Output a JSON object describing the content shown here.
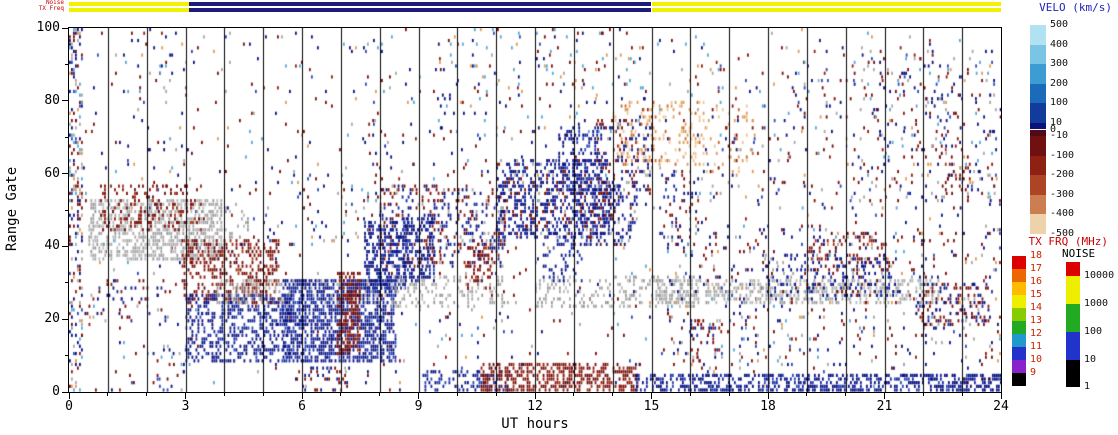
{
  "header": {
    "noise_label": "Noise",
    "txfreq_label": "TX Freq",
    "label_color": "#cc0000",
    "strips": [
      {
        "name": "noise",
        "segments": [
          {
            "from": 0,
            "to": 3.1,
            "color": "#f2f200"
          },
          {
            "from": 3.1,
            "to": 15.0,
            "color": "#1c1c7a"
          },
          {
            "from": 15.0,
            "to": 24,
            "color": "#f2f200"
          }
        ]
      },
      {
        "name": "txfreq",
        "segments": [
          {
            "from": 0,
            "to": 3.1,
            "color": "#f2f200"
          },
          {
            "from": 3.1,
            "to": 15.0,
            "color": "#1c1c7a"
          },
          {
            "from": 15.0,
            "to": 24,
            "color": "#f2f200"
          }
        ]
      }
    ]
  },
  "chart_data": {
    "type": "heatmap",
    "title": "",
    "xlabel": "UT hours",
    "ylabel": "Range Gate",
    "xlim": [
      0,
      24
    ],
    "ylim": [
      0,
      100
    ],
    "xticks": [
      0,
      3,
      6,
      9,
      12,
      15,
      18,
      21,
      24
    ],
    "yticks": [
      0,
      20,
      40,
      60,
      80,
      100
    ],
    "x_minor_step": 1,
    "y_minor_step": 10,
    "grid": "vertical-hour-lines",
    "legend_position": "right",
    "hour_gridlines": [
      1,
      2,
      3,
      4,
      5,
      6,
      7,
      8,
      9,
      10,
      11,
      12,
      13,
      14,
      15,
      16,
      17,
      18,
      19,
      20,
      21,
      22,
      23
    ],
    "colorbars": {
      "velocity": {
        "title": "VELO (km/s)",
        "title_color": "#2222bb",
        "label_color": "#111111",
        "label_mode": "edges",
        "labels": [
          "500",
          "400",
          "300",
          "200",
          "100",
          "10",
          "0",
          "-10",
          "-100",
          "-200",
          "-300",
          "-400",
          "-500"
        ],
        "blocks": [
          [
            "#b2e2f2",
            1
          ],
          [
            "#7ac4e6",
            1
          ],
          [
            "#3d9cd4",
            1
          ],
          [
            "#1a6cba",
            1
          ],
          [
            "#123c9c",
            1
          ],
          [
            "#0a1478",
            0.35
          ],
          [
            "#520a14",
            0.35
          ],
          [
            "#701010",
            1
          ],
          [
            "#8e2014",
            1
          ],
          [
            "#ad4426",
            1
          ],
          [
            "#cb7e50",
            1
          ],
          [
            "#eed2aa",
            1
          ]
        ]
      },
      "txfrq": {
        "title": "TX FRQ (MHz)",
        "title_color": "#cc0000",
        "label_color": "#cc2200",
        "label_mode": "tops",
        "labels": [
          "18",
          "17",
          "16",
          "15",
          "14",
          "13",
          "12",
          "11",
          "10",
          "9"
        ],
        "blocks": [
          [
            "#dd0000",
            1
          ],
          [
            "#ee6600",
            1
          ],
          [
            "#ffbb00",
            1
          ],
          [
            "#eeee00",
            1
          ],
          [
            "#88cc00",
            1
          ],
          [
            "#22aa22",
            1
          ],
          [
            "#2299cc",
            1
          ],
          [
            "#2233cc",
            1
          ],
          [
            "#8822cc",
            1
          ],
          [
            "#000000",
            1
          ]
        ]
      },
      "noise": {
        "title": "NOISE",
        "title_color": "#000000",
        "label_color": "#111111",
        "label_mode": "bottoms",
        "labels": [
          "10000",
          "1000",
          "100",
          "10",
          "1"
        ],
        "blocks": [
          [
            "#dd0000",
            14
          ],
          [
            "#eeee00",
            28
          ],
          [
            "#22aa22",
            28
          ],
          [
            "#2233cc",
            28
          ],
          [
            "#000000",
            27
          ]
        ]
      }
    },
    "scatter": {
      "seed": 20240,
      "palettes": {
        "gs": {
          "colors": [
            "#a9a9a9",
            "#bdbdbd",
            "#999999"
          ],
          "weights": [
            0.5,
            0.3,
            0.2
          ]
        },
        "neg": {
          "colors": [
            "#7a0f0a",
            "#8f1d10",
            "#5c0a14",
            "#a03a20"
          ],
          "weights": [
            0.4,
            0.3,
            0.2,
            0.1
          ]
        },
        "pos": {
          "colors": [
            "#0c1480",
            "#1b2aa0",
            "#2f4cb8"
          ],
          "weights": [
            0.55,
            0.3,
            0.15
          ]
        },
        "lb": {
          "colors": [
            "#58a8d8",
            "#8fc9e9",
            "#2f7fc1"
          ],
          "weights": [
            0.4,
            0.4,
            0.2
          ]
        },
        "warm": {
          "colors": [
            "#e19b5a",
            "#efc79b",
            "#c56a2e"
          ],
          "weights": [
            0.4,
            0.4,
            0.2
          ]
        },
        "mix": {
          "colors": [
            "#0c1480",
            "#7a0f0a",
            "#a9a9a9",
            "#58a8d8",
            "#e19b5a",
            "#2f4cb8",
            "#8f1d10"
          ],
          "weights": [
            0.28,
            0.24,
            0.14,
            0.12,
            0.08,
            0.07,
            0.07
          ]
        },
        "mixrb": {
          "colors": [
            "#0c1480",
            "#7a0f0a",
            "#1b2aa0",
            "#8f1d10",
            "#a9a9a9"
          ],
          "weights": [
            0.35,
            0.3,
            0.15,
            0.12,
            0.08
          ]
        },
        "posmix": {
          "colors": [
            "#0c1480",
            "#1b2aa0",
            "#7a0f0a",
            "#a9a9a9"
          ],
          "weights": [
            0.5,
            0.25,
            0.15,
            0.1
          ]
        },
        "mixlb": {
          "colors": [
            "#58a8d8",
            "#0c1480",
            "#7a0f0a",
            "#e19b5a"
          ],
          "weights": [
            0.35,
            0.3,
            0.2,
            0.15
          ]
        }
      },
      "regions": [
        {
          "x": [
            0,
            24
          ],
          "g": [
            0,
            100
          ],
          "d": 0.02,
          "p": "mix"
        },
        {
          "x": [
            0,
            0.35
          ],
          "g": [
            0,
            100
          ],
          "d": 0.28,
          "p": "mix"
        },
        {
          "x": [
            1.5,
            3.0
          ],
          "g": [
            55,
            100
          ],
          "d": 0.04,
          "p": "mix"
        },
        {
          "x": [
            0.5,
            3.9
          ],
          "g": [
            36,
            53
          ],
          "d": 0.5,
          "p": "gs"
        },
        {
          "x": [
            0.8,
            3.4
          ],
          "g": [
            44,
            57
          ],
          "d": 0.22,
          "p": "neg"
        },
        {
          "x": [
            0.4,
            2.5
          ],
          "g": [
            18,
            31
          ],
          "d": 0.1,
          "p": "mixrb"
        },
        {
          "x": [
            2.0,
            3.1
          ],
          "g": [
            0,
            12
          ],
          "d": 0.12,
          "p": "mix"
        },
        {
          "x": [
            2.9,
            5.4
          ],
          "g": [
            24,
            42
          ],
          "d": 0.38,
          "p": "neg"
        },
        {
          "x": [
            3.0,
            5.7
          ],
          "g": [
            8,
            27
          ],
          "d": 0.42,
          "p": "pos"
        },
        {
          "x": [
            3.4,
            4.6
          ],
          "g": [
            42,
            52
          ],
          "d": 0.2,
          "p": "gs"
        },
        {
          "x": [
            3.8,
            8.2
          ],
          "g": [
            24,
            31
          ],
          "d": 0.3,
          "p": "gs"
        },
        {
          "x": [
            5.0,
            8.2
          ],
          "g": [
            40,
            62
          ],
          "d": 0.05,
          "p": "mix"
        },
        {
          "x": [
            5.5,
            8.4
          ],
          "g": [
            8,
            31
          ],
          "d": 0.6,
          "p": "pos"
        },
        {
          "x": [
            5.8,
            7.2
          ],
          "g": [
            0,
            7
          ],
          "d": 0.25,
          "p": "mixrb"
        },
        {
          "x": [
            6.9,
            7.5
          ],
          "g": [
            10,
            33
          ],
          "d": 0.55,
          "p": "neg"
        },
        {
          "x": [
            7.5,
            9.0
          ],
          "g": [
            55,
            75
          ],
          "d": 0.06,
          "p": "mixrb"
        },
        {
          "x": [
            7.6,
            8.7
          ],
          "g": [
            28,
            47
          ],
          "d": 0.45,
          "p": "pos"
        },
        {
          "x": [
            8.0,
            11.2
          ],
          "g": [
            34,
            57
          ],
          "d": 0.26,
          "p": "mixrb"
        },
        {
          "x": [
            8.3,
            11.2
          ],
          "g": [
            23,
            32
          ],
          "d": 0.26,
          "p": "gs"
        },
        {
          "x": [
            8.6,
            9.4
          ],
          "g": [
            30,
            48
          ],
          "d": 0.4,
          "p": "pos"
        },
        {
          "x": [
            9.0,
            11.3
          ],
          "g": [
            0,
            6
          ],
          "d": 0.3,
          "p": "pos"
        },
        {
          "x": [
            9.5,
            14.9
          ],
          "g": [
            70,
            100
          ],
          "d": 0.045,
          "p": "mixlb"
        },
        {
          "x": [
            10.2,
            10.9
          ],
          "g": [
            28,
            42
          ],
          "d": 0.3,
          "p": "neg"
        },
        {
          "x": [
            10.6,
            14.7
          ],
          "g": [
            0,
            8
          ],
          "d": 0.45,
          "p": "neg"
        },
        {
          "x": [
            11.0,
            13.9
          ],
          "g": [
            42,
            64
          ],
          "d": 0.4,
          "p": "posmix"
        },
        {
          "x": [
            12.0,
            16.2
          ],
          "g": [
            23,
            32
          ],
          "d": 0.24,
          "p": "gs"
        },
        {
          "x": [
            12.2,
            13.2
          ],
          "g": [
            30,
            44
          ],
          "d": 0.25,
          "p": "pos"
        },
        {
          "x": [
            12.6,
            13.7
          ],
          "g": [
            55,
            73
          ],
          "d": 0.3,
          "p": "pos"
        },
        {
          "x": [
            13.0,
            14.6
          ],
          "g": [
            40,
            58
          ],
          "d": 0.3,
          "p": "posmix"
        },
        {
          "x": [
            13.6,
            15.0
          ],
          "g": [
            55,
            76
          ],
          "d": 0.2,
          "p": "mixrb"
        },
        {
          "x": [
            14.0,
            16.4
          ],
          "g": [
            62,
            80
          ],
          "d": 0.2,
          "p": "warm"
        },
        {
          "x": [
            14.6,
            24
          ],
          "g": [
            0,
            5
          ],
          "d": 0.5,
          "p": "pos"
        },
        {
          "x": [
            15.0,
            22.4
          ],
          "g": [
            24,
            31
          ],
          "d": 0.4,
          "p": "gs"
        },
        {
          "x": [
            15.2,
            16.2
          ],
          "g": [
            40,
            62
          ],
          "d": 0.12,
          "p": "mixrb"
        },
        {
          "x": [
            15.4,
            24
          ],
          "g": [
            6,
            46
          ],
          "d": 0.06,
          "p": "mix"
        },
        {
          "x": [
            16.0,
            16.8
          ],
          "g": [
            8,
            20
          ],
          "d": 0.15,
          "p": "mixrb"
        },
        {
          "x": [
            16.4,
            17.6
          ],
          "g": [
            60,
            79
          ],
          "d": 0.1,
          "p": "warm"
        },
        {
          "x": [
            16.5,
            24
          ],
          "g": [
            50,
            95
          ],
          "d": 0.035,
          "p": "mix"
        },
        {
          "x": [
            17.8,
            21.3
          ],
          "g": [
            26,
            38
          ],
          "d": 0.2,
          "p": "posmix"
        },
        {
          "x": [
            19.0,
            21.1
          ],
          "g": [
            33,
            44
          ],
          "d": 0.15,
          "p": "neg"
        },
        {
          "x": [
            20.4,
            23.9
          ],
          "g": [
            52,
            92
          ],
          "d": 0.06,
          "p": "mix"
        },
        {
          "x": [
            21.8,
            23.7
          ],
          "g": [
            18,
            30
          ],
          "d": 0.25,
          "p": "mixrb"
        },
        {
          "x": [
            22.4,
            23.2
          ],
          "g": [
            55,
            70
          ],
          "d": 0.12,
          "p": "neg"
        }
      ]
    }
  }
}
